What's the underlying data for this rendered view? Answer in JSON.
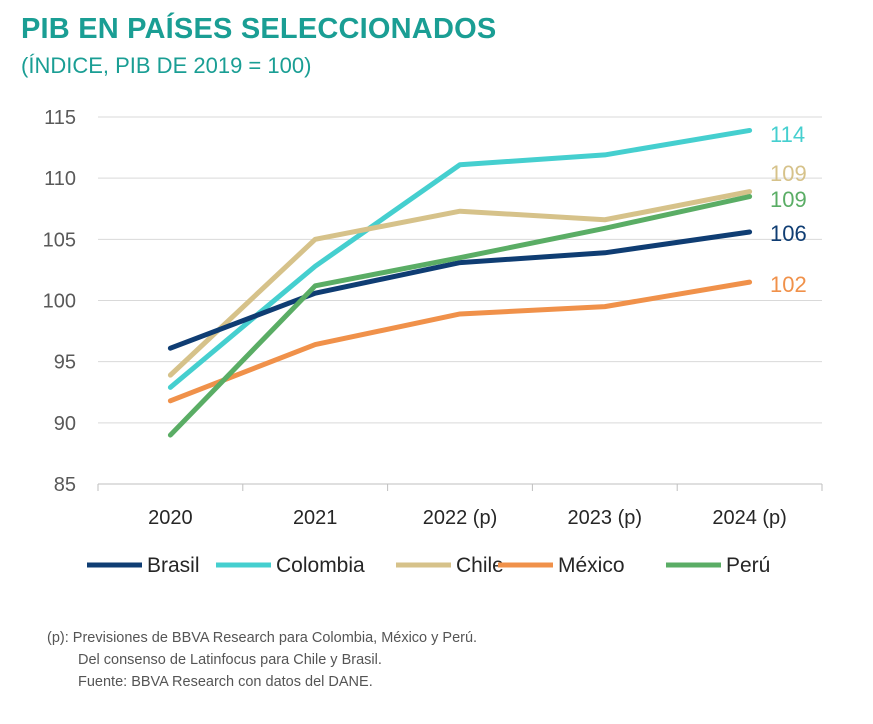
{
  "header": {
    "title": "PIB EN PAÍSES SELECCIONADOS",
    "subtitle": "(ÍNDICE, PIB DE 2019 = 100)"
  },
  "chart_data": {
    "type": "line",
    "title": "PIB EN PAÍSES SELECCIONADOS",
    "subtitle": "(ÍNDICE, PIB DE 2019 = 100)",
    "categories": [
      "2020",
      "2021",
      "2022 (p)",
      "2023 (p)",
      "2024 (p)"
    ],
    "ylim": [
      85,
      115
    ],
    "yticks": [
      85,
      90,
      95,
      100,
      105,
      110,
      115
    ],
    "grid": true,
    "legend_position": "bottom",
    "series": [
      {
        "name": "Brasil",
        "color": "#0f3d73",
        "values": [
          96.1,
          100.6,
          103.1,
          103.9,
          105.6
        ],
        "end_label": "106"
      },
      {
        "name": "Colombia",
        "color": "#45cfcf",
        "values": [
          92.9,
          102.8,
          111.1,
          111.9,
          113.9
        ],
        "end_label": "114"
      },
      {
        "name": "Chile",
        "color": "#d6c28a",
        "values": [
          93.9,
          105.0,
          107.3,
          106.6,
          108.9
        ],
        "end_label": "109"
      },
      {
        "name": "México",
        "color": "#f0914a",
        "values": [
          91.8,
          96.4,
          98.9,
          99.5,
          101.5
        ],
        "end_label": "102"
      },
      {
        "name": "Perú",
        "color": "#5aad65",
        "values": [
          89.0,
          101.2,
          103.5,
          105.9,
          108.5
        ],
        "end_label": "109"
      }
    ]
  },
  "notes": {
    "line1": "(p): Previsiones de BBVA Research para Colombia, México y Perú.",
    "line2": "Del consenso de Latinfocus para Chile y Brasil.",
    "line3": "Fuente: BBVA Research con datos del DANE."
  }
}
